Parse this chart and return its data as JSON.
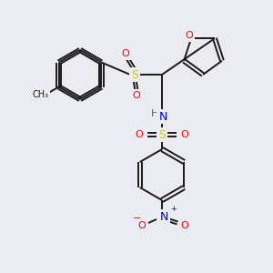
{
  "background_color": "#ebebf2",
  "bond_color": "#1a1a1a",
  "atom_colors": {
    "O": "#ff0000",
    "N": "#0000cc",
    "S": "#cccc00",
    "H": "#407040"
  },
  "figsize": [
    3.0,
    3.0
  ],
  "dpi": 100
}
